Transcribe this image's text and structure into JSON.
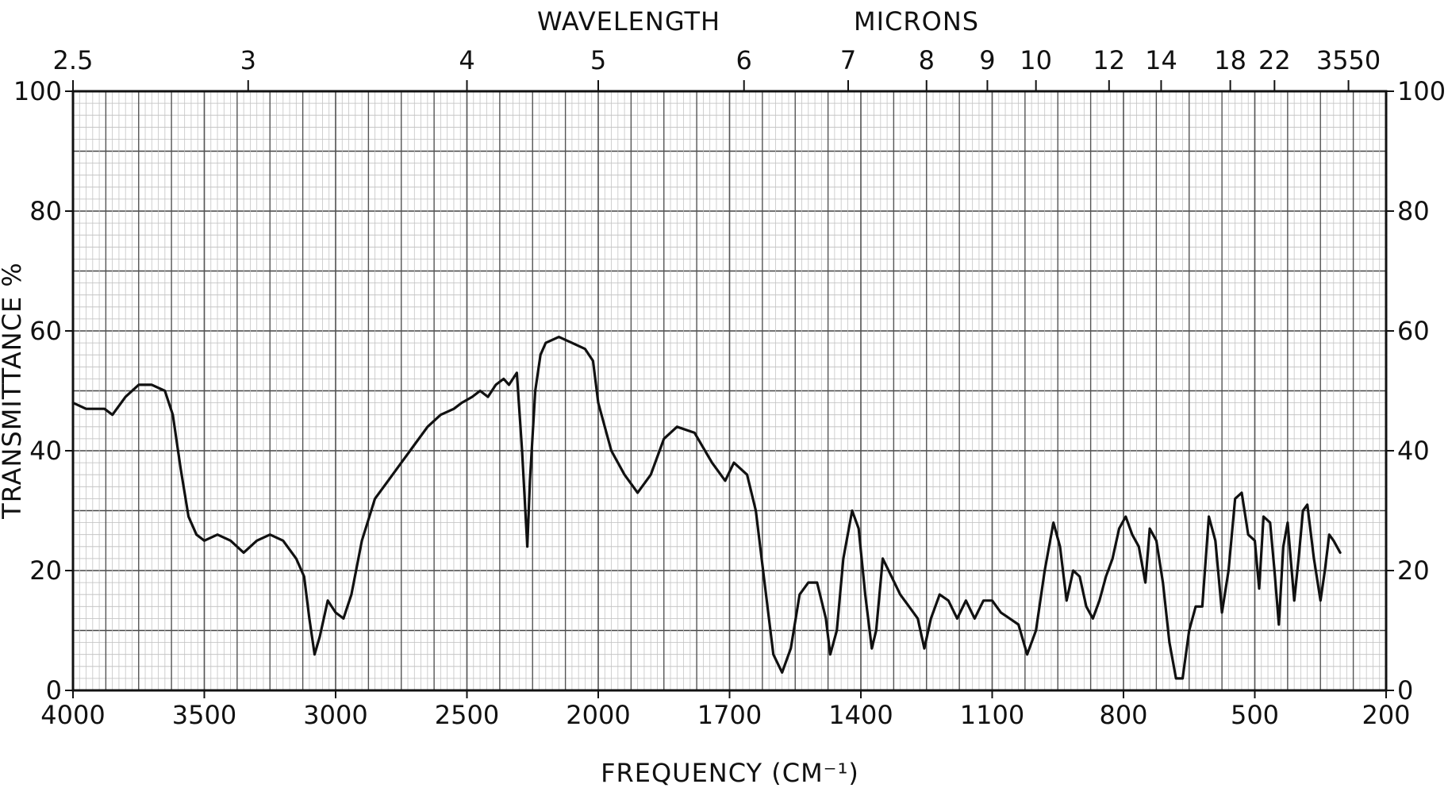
{
  "chart_data": {
    "type": "line",
    "title": "",
    "top_axis_title_left": "WAVELENGTH",
    "top_axis_title_right": "MICRONS",
    "xlabel": "FREQUENCY (CM⁻¹)",
    "ylabel": "TRANSMITTANCE %",
    "xlim": [
      4000,
      200
    ],
    "ylim": [
      0,
      100
    ],
    "grid": true,
    "line_color": "#111111",
    "x_ticks": [
      {
        "value": 4000,
        "label": "4000"
      },
      {
        "value": 3500,
        "label": "3500"
      },
      {
        "value": 3000,
        "label": "3000"
      },
      {
        "value": 2500,
        "label": "2500"
      },
      {
        "value": 2000,
        "label": "2000"
      },
      {
        "value": 1700,
        "label": "1700"
      },
      {
        "value": 1400,
        "label": "1400"
      },
      {
        "value": 1100,
        "label": "1100"
      },
      {
        "value": 800,
        "label": "800"
      },
      {
        "value": 500,
        "label": "500"
      },
      {
        "value": 200,
        "label": "200"
      }
    ],
    "top_ticks": [
      {
        "value": 4000,
        "label": "2.5"
      },
      {
        "value": 3333,
        "label": "3"
      },
      {
        "value": 2500,
        "label": "4"
      },
      {
        "value": 2000,
        "label": "5"
      },
      {
        "value": 1667,
        "label": "6"
      },
      {
        "value": 1429,
        "label": "7"
      },
      {
        "value": 1250,
        "label": "8"
      },
      {
        "value": 1111,
        "label": "9"
      },
      {
        "value": 1000,
        "label": "10"
      },
      {
        "value": 833,
        "label": "12"
      },
      {
        "value": 714,
        "label": "14"
      },
      {
        "value": 556,
        "label": "18"
      },
      {
        "value": 455,
        "label": "22"
      },
      {
        "value": 286,
        "label": "3550"
      }
    ],
    "y_ticks": [
      {
        "value": 0,
        "label": "0"
      },
      {
        "value": 20,
        "label": "20"
      },
      {
        "value": 40,
        "label": "40"
      },
      {
        "value": 60,
        "label": "60"
      },
      {
        "value": 80,
        "label": "80"
      },
      {
        "value": 100,
        "label": "100"
      }
    ],
    "series": [
      {
        "points": [
          [
            4000,
            48
          ],
          [
            3950,
            47
          ],
          [
            3880,
            47
          ],
          [
            3850,
            46
          ],
          [
            3800,
            49
          ],
          [
            3750,
            51
          ],
          [
            3700,
            51
          ],
          [
            3650,
            50
          ],
          [
            3620,
            46
          ],
          [
            3590,
            37
          ],
          [
            3560,
            29
          ],
          [
            3530,
            26
          ],
          [
            3500,
            25
          ],
          [
            3450,
            26
          ],
          [
            3400,
            25
          ],
          [
            3350,
            23
          ],
          [
            3300,
            25
          ],
          [
            3250,
            26
          ],
          [
            3200,
            25
          ],
          [
            3150,
            22
          ],
          [
            3120,
            19
          ],
          [
            3100,
            12
          ],
          [
            3080,
            6
          ],
          [
            3060,
            9
          ],
          [
            3050,
            11
          ],
          [
            3030,
            15
          ],
          [
            3000,
            13
          ],
          [
            2970,
            12
          ],
          [
            2940,
            16
          ],
          [
            2900,
            25
          ],
          [
            2850,
            32
          ],
          [
            2800,
            35
          ],
          [
            2750,
            38
          ],
          [
            2700,
            41
          ],
          [
            2650,
            44
          ],
          [
            2600,
            46
          ],
          [
            2550,
            47
          ],
          [
            2520,
            48
          ],
          [
            2480,
            49
          ],
          [
            2450,
            50
          ],
          [
            2420,
            49
          ],
          [
            2390,
            51
          ],
          [
            2360,
            52
          ],
          [
            2340,
            51
          ],
          [
            2310,
            53
          ],
          [
            2290,
            40
          ],
          [
            2270,
            24
          ],
          [
            2260,
            35
          ],
          [
            2240,
            50
          ],
          [
            2220,
            56
          ],
          [
            2200,
            58
          ],
          [
            2150,
            59
          ],
          [
            2100,
            58
          ],
          [
            2050,
            57
          ],
          [
            2020,
            55
          ],
          [
            2000,
            48
          ],
          [
            1970,
            40
          ],
          [
            1940,
            36
          ],
          [
            1910,
            33
          ],
          [
            1880,
            36
          ],
          [
            1850,
            42
          ],
          [
            1820,
            44
          ],
          [
            1780,
            43
          ],
          [
            1740,
            38
          ],
          [
            1710,
            35
          ],
          [
            1690,
            38
          ],
          [
            1660,
            36
          ],
          [
            1640,
            30
          ],
          [
            1620,
            18
          ],
          [
            1600,
            6
          ],
          [
            1580,
            3
          ],
          [
            1560,
            7
          ],
          [
            1540,
            16
          ],
          [
            1520,
            18
          ],
          [
            1500,
            18
          ],
          [
            1480,
            12
          ],
          [
            1470,
            6
          ],
          [
            1455,
            10
          ],
          [
            1440,
            22
          ],
          [
            1420,
            30
          ],
          [
            1405,
            27
          ],
          [
            1390,
            16
          ],
          [
            1375,
            7
          ],
          [
            1365,
            10
          ],
          [
            1350,
            22
          ],
          [
            1330,
            19
          ],
          [
            1310,
            16
          ],
          [
            1290,
            14
          ],
          [
            1270,
            12
          ],
          [
            1255,
            7
          ],
          [
            1240,
            12
          ],
          [
            1220,
            16
          ],
          [
            1200,
            15
          ],
          [
            1180,
            12
          ],
          [
            1160,
            15
          ],
          [
            1140,
            12
          ],
          [
            1120,
            15
          ],
          [
            1100,
            15
          ],
          [
            1080,
            13
          ],
          [
            1060,
            12
          ],
          [
            1040,
            11
          ],
          [
            1020,
            6
          ],
          [
            1000,
            10
          ],
          [
            980,
            20
          ],
          [
            960,
            28
          ],
          [
            945,
            24
          ],
          [
            930,
            15
          ],
          [
            915,
            20
          ],
          [
            900,
            19
          ],
          [
            885,
            14
          ],
          [
            870,
            12
          ],
          [
            855,
            15
          ],
          [
            840,
            19
          ],
          [
            825,
            22
          ],
          [
            810,
            27
          ],
          [
            795,
            29
          ],
          [
            780,
            26
          ],
          [
            765,
            24
          ],
          [
            750,
            18
          ],
          [
            740,
            27
          ],
          [
            725,
            25
          ],
          [
            710,
            18
          ],
          [
            695,
            8
          ],
          [
            680,
            2
          ],
          [
            665,
            2
          ],
          [
            650,
            10
          ],
          [
            635,
            14
          ],
          [
            620,
            14
          ],
          [
            605,
            29
          ],
          [
            590,
            25
          ],
          [
            575,
            13
          ],
          [
            560,
            20
          ],
          [
            545,
            32
          ],
          [
            530,
            33
          ],
          [
            515,
            26
          ],
          [
            500,
            25
          ],
          [
            490,
            17
          ],
          [
            480,
            29
          ],
          [
            465,
            28
          ],
          [
            455,
            20
          ],
          [
            445,
            11
          ],
          [
            435,
            24
          ],
          [
            425,
            28
          ],
          [
            410,
            15
          ],
          [
            400,
            22
          ],
          [
            390,
            30
          ],
          [
            380,
            31
          ],
          [
            365,
            22
          ],
          [
            350,
            15
          ],
          [
            340,
            20
          ],
          [
            330,
            26
          ],
          [
            320,
            25
          ],
          [
            305,
            23
          ]
        ]
      }
    ]
  }
}
